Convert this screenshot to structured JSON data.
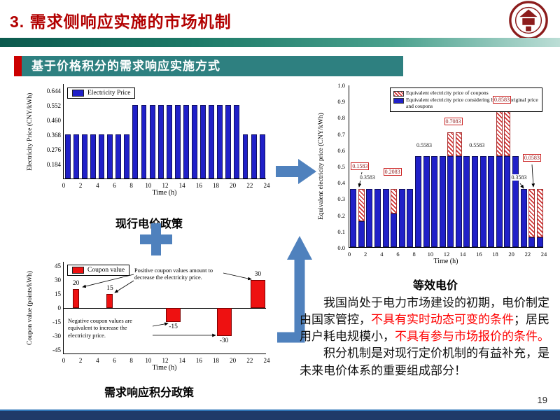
{
  "header": {
    "title": "3. 需求侧响应实施的市场机制"
  },
  "banner": {
    "text": "基于价格积分的需求响应实施方式"
  },
  "page_number": "19",
  "colors": {
    "accent_red": "#b20000",
    "banner_teal": "#2e8080",
    "bar_blue": "#2020c8",
    "bar_red": "#ee1111",
    "arrow_blue": "#4f81bd",
    "footer_navy": "#1f3a68",
    "emphasis_red": "#fe0000"
  },
  "chart_data": [
    {
      "type": "bar",
      "title": "现行电价政策",
      "xlabel": "Time (h)",
      "ylabel": "Electricity Price (CNY/kWh)",
      "legend": [
        "Electricity Price"
      ],
      "ylim": [
        0.092,
        0.69
      ],
      "ytick_labels": [
        "0.184",
        "0.276",
        "0.368",
        "0.460",
        "0.552",
        "0.644"
      ],
      "xticks": [
        0,
        2,
        4,
        6,
        8,
        10,
        12,
        14,
        16,
        18,
        20,
        22,
        24
      ],
      "values": [
        0.368,
        0.368,
        0.368,
        0.368,
        0.368,
        0.368,
        0.368,
        0.368,
        0.552,
        0.552,
        0.552,
        0.552,
        0.552,
        0.552,
        0.552,
        0.552,
        0.552,
        0.552,
        0.552,
        0.552,
        0.552,
        0.368,
        0.368,
        0.368
      ]
    },
    {
      "type": "bar",
      "title": "需求响应积分政策",
      "xlabel": "Time (h)",
      "ylabel": "Coupon value (points/kWh)",
      "legend": [
        "Coupon value"
      ],
      "ylim": [
        -49.5,
        49.5
      ],
      "ytick_labels": [
        "-45",
        "-30",
        "-15",
        "0",
        "15",
        "30",
        "45"
      ],
      "xticks": [
        0,
        2,
        4,
        6,
        8,
        10,
        12,
        14,
        16,
        18,
        20,
        22,
        24
      ],
      "bars": [
        {
          "start": 1,
          "span": 1,
          "value": 20,
          "label": "20"
        },
        {
          "start": 5,
          "span": 1,
          "value": 15,
          "label": "15"
        },
        {
          "start": 12,
          "span": 2,
          "value": -15,
          "label": "-15"
        },
        {
          "start": 18,
          "span": 2,
          "value": -30,
          "label": "-30"
        },
        {
          "start": 22,
          "span": 2,
          "value": 30,
          "label": "30"
        }
      ],
      "annotations": [
        {
          "id": "positive",
          "text": "Positive coupon values amount to decrease the electricity price."
        },
        {
          "id": "negative",
          "text": "Negative coupon values are equivalent to increase the electricity price."
        }
      ]
    },
    {
      "type": "stacked-bar",
      "title": "等效电价",
      "xlabel": "Time (h)",
      "ylabel": "Equivalent electricity price (CNY/kWh)",
      "legend": [
        "Equivalent electricity price of coupons",
        "Equivalent electricity price considering both the original price and coupons"
      ],
      "ylim": [
        0,
        1.0
      ],
      "ytick_labels": [
        "0.0",
        "0.1",
        "0.2",
        "0.3",
        "0.4",
        "0.5",
        "0.6",
        "0.7",
        "0.8",
        "0.9",
        "1.0"
      ],
      "xticks": [
        0,
        2,
        4,
        6,
        8,
        10,
        12,
        14,
        16,
        18,
        20,
        22,
        24
      ],
      "price": [
        0.3583,
        0.1583,
        0.3583,
        0.3583,
        0.3583,
        0.2083,
        0.3583,
        0.3583,
        0.5583,
        0.5583,
        0.5583,
        0.5583,
        0.5583,
        0.5583,
        0.5583,
        0.5583,
        0.5583,
        0.5583,
        0.5583,
        0.5583,
        0.5583,
        0.3583,
        0.0583,
        0.0583
      ],
      "coupon": [
        0,
        0.2,
        0,
        0,
        0,
        0.15,
        0,
        0,
        0,
        0,
        0,
        0,
        0.15,
        0.15,
        0,
        0,
        0,
        0,
        0.3,
        0.3,
        0,
        0,
        0.3,
        0.3
      ],
      "value_labels": [
        {
          "x": 0.2,
          "y": 0.48,
          "text": "0.1583",
          "boxed": true
        },
        {
          "x": 1.2,
          "y": 0.405,
          "text": "0.3583",
          "boxed": false
        },
        {
          "x": 4.2,
          "y": 0.445,
          "text": "0.2083",
          "boxed": true
        },
        {
          "x": 8.2,
          "y": 0.605,
          "text": "0.5583",
          "boxed": false
        },
        {
          "x": 11.7,
          "y": 0.755,
          "text": "0.7083",
          "boxed": true
        },
        {
          "x": 14.7,
          "y": 0.605,
          "text": "0.5583",
          "boxed": false
        },
        {
          "x": 17.7,
          "y": 0.89,
          "text": "0.8583",
          "boxed": true
        },
        {
          "x": 19.9,
          "y": 0.405,
          "text": "0.3583",
          "boxed": false
        },
        {
          "x": 21.4,
          "y": 0.53,
          "text": "0.0583",
          "boxed": true
        }
      ]
    }
  ],
  "conclusion": {
    "p1": {
      "s1": "我国尚处于电力市场建设的初期，电价制定由国家管控，",
      "s2": "不具有实时动态可变的条件",
      "s3": "；居民用户耗电规模小，",
      "s4": "不具有参与市场报价的条件。"
    },
    "p2": "积分机制是对现行定价机制的有益补充，是未来电价体系的重要组成部分！"
  }
}
